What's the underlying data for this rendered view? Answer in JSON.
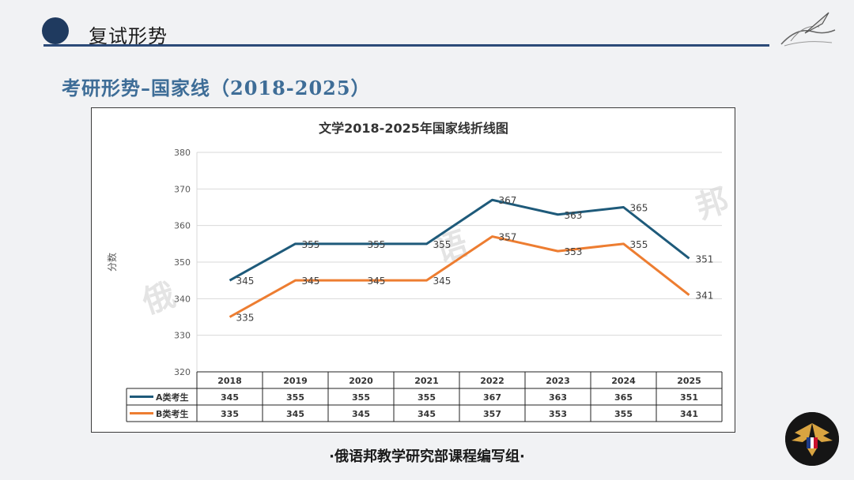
{
  "header": {
    "title": "复试形势"
  },
  "page": {
    "subtitle": "考研形势–国家线（2018-2025）"
  },
  "footer": {
    "text": "·俄语邦教学研究部课程编写组·"
  },
  "watermark": [
    "俄",
    "语",
    "邦"
  ],
  "colors": {
    "seriesA": "#1e5a7a",
    "seriesB": "#ed7d31",
    "accent": "#2c4a78"
  },
  "chart_data": {
    "type": "line",
    "title": "文学2018-2025年国家线折线图",
    "xlabel": "",
    "ylabel": "分数",
    "categories": [
      "2018",
      "2019",
      "2020",
      "2021",
      "2022",
      "2023",
      "2024",
      "2025"
    ],
    "ylim": [
      320,
      380
    ],
    "yticks": [
      320,
      330,
      340,
      350,
      360,
      370,
      380
    ],
    "grid": true,
    "data_table": true,
    "series": [
      {
        "name": "A类考生",
        "values": [
          345,
          355,
          355,
          355,
          367,
          363,
          365,
          351
        ]
      },
      {
        "name": "B类考生",
        "values": [
          335,
          345,
          345,
          345,
          357,
          353,
          355,
          341
        ]
      }
    ]
  }
}
